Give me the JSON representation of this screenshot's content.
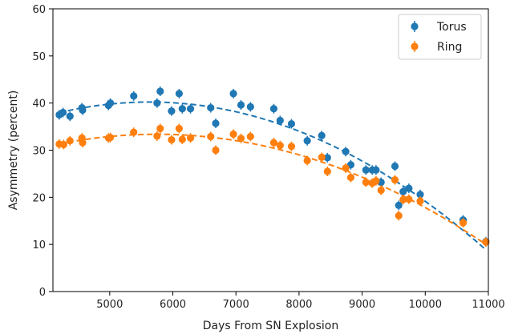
{
  "chart_data": {
    "type": "scatter",
    "title": "",
    "xlabel": "Days From SN Explosion",
    "ylabel": "Asymmetry (percent)",
    "xlim": [
      4100,
      11000
    ],
    "ylim": [
      0,
      60
    ],
    "xticks": [
      5000,
      6000,
      7000,
      8000,
      9000,
      10000,
      11000
    ],
    "yticks": [
      0,
      10,
      20,
      30,
      40,
      50,
      60
    ],
    "grid": false,
    "legend_position": "top-right",
    "series": [
      {
        "name": "Torus",
        "color": "#1f77b4",
        "marker": "circle",
        "error_bars": true,
        "fit": "dashed quadratic",
        "x": [
          4200,
          4260,
          4370,
          4560,
          4570,
          4980,
          5010,
          5380,
          5750,
          5800,
          5980,
          6100,
          6150,
          6280,
          6600,
          6680,
          6960,
          7080,
          7230,
          7600,
          7700,
          7880,
          8130,
          8360,
          8450,
          8740,
          8820,
          9060,
          9160,
          9220,
          9300,
          9520,
          9580,
          9650,
          9740,
          9920,
          10600,
          10960
        ],
        "y": [
          37.5,
          38.0,
          37.2,
          39.0,
          38.5,
          39.5,
          40.0,
          41.5,
          40.0,
          42.5,
          38.3,
          42.0,
          38.8,
          38.8,
          39.0,
          35.7,
          42.0,
          39.6,
          39.2,
          38.8,
          36.3,
          35.6,
          32.0,
          33.1,
          28.4,
          29.7,
          26.9,
          25.8,
          25.8,
          25.8,
          23.2,
          26.6,
          18.3,
          21.2,
          21.9,
          20.6,
          15.2,
          10.6
        ]
      },
      {
        "name": "Ring",
        "color": "#ff7f0e",
        "marker": "circle",
        "error_bars": true,
        "fit": "dashed quadratic",
        "x": [
          4200,
          4270,
          4370,
          4560,
          4570,
          4980,
          5010,
          5380,
          5750,
          5800,
          5980,
          6100,
          6150,
          6280,
          6600,
          6680,
          6960,
          7080,
          7230,
          7600,
          7700,
          7880,
          8130,
          8360,
          8450,
          8740,
          8820,
          9060,
          9160,
          9220,
          9300,
          9520,
          9580,
          9650,
          9740,
          9920,
          10600,
          10960
        ],
        "y": [
          31.3,
          31.2,
          32.0,
          32.6,
          31.6,
          32.6,
          32.7,
          33.8,
          33.0,
          34.6,
          32.2,
          34.6,
          32.3,
          32.6,
          32.9,
          30.0,
          33.4,
          32.5,
          32.9,
          31.6,
          31.0,
          30.8,
          27.8,
          28.5,
          25.5,
          26.2,
          24.2,
          23.2,
          23.0,
          23.5,
          21.5,
          23.7,
          16.1,
          19.5,
          19.6,
          19.2,
          14.6,
          10.5
        ]
      }
    ]
  }
}
